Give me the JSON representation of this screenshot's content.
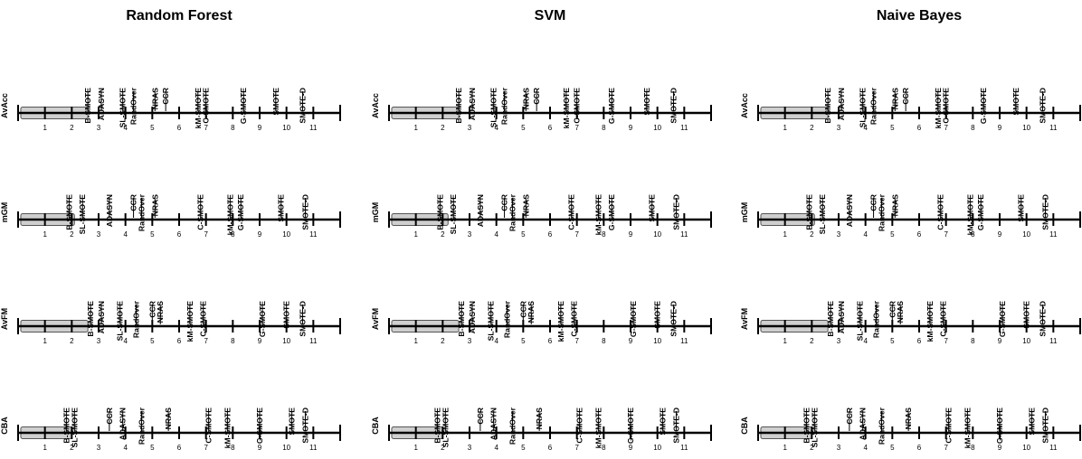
{
  "chart_data": {
    "type": "critical-difference",
    "axis": {
      "min": 0,
      "max": 12,
      "ticks": [
        1,
        2,
        3,
        4,
        5,
        6,
        7,
        8,
        9,
        10,
        11
      ]
    },
    "panels": [
      {
        "title": "Random Forest",
        "rows": [
          {
            "label": "AvAcc",
            "cd": 2.6,
            "methods": [
              {
                "name": "B-SMOTE",
                "rank": 2.6
              },
              {
                "name": "ADASYN",
                "rank": 3.1
              },
              {
                "name": "SL-SMOTE",
                "rank": 3.9
              },
              {
                "name": "RandOver",
                "rank": 4.3
              },
              {
                "name": "NRAS",
                "rank": 5.1
              },
              {
                "name": "CCR",
                "rank": 5.5
              },
              {
                "name": "kM-SMOTE",
                "rank": 6.7
              },
              {
                "name": "C-SMOTE",
                "rank": 7.0
              },
              {
                "name": "G-SMOTE",
                "rank": 8.4
              },
              {
                "name": "SMOTE",
                "rank": 9.6
              },
              {
                "name": "SMOTE-D",
                "rank": 10.6
              }
            ]
          },
          {
            "label": "mGM",
            "cd": 2.1,
            "methods": [
              {
                "name": "B-SMOTE",
                "rank": 1.9
              },
              {
                "name": "SL-SMOTE",
                "rank": 2.4
              },
              {
                "name": "ADASYN",
                "rank": 3.4
              },
              {
                "name": "CCR",
                "rank": 4.3
              },
              {
                "name": "RandOver",
                "rank": 4.6
              },
              {
                "name": "NRAS",
                "rank": 5.1
              },
              {
                "name": "C-SMOTE",
                "rank": 6.8
              },
              {
                "name": "kM-SMOTE",
                "rank": 7.9
              },
              {
                "name": "G-SMOTE",
                "rank": 8.3
              },
              {
                "name": "SMOTE",
                "rank": 9.8
              },
              {
                "name": "SMOTE-D",
                "rank": 10.7
              }
            ]
          },
          {
            "label": "AvFM",
            "cd": 2.6,
            "methods": [
              {
                "name": "B-SMOTE",
                "rank": 2.7
              },
              {
                "name": "ADASYN",
                "rank": 3.1
              },
              {
                "name": "SL-SMOTE",
                "rank": 3.8
              },
              {
                "name": "RandOver",
                "rank": 4.4
              },
              {
                "name": "CCR",
                "rank": 5.0
              },
              {
                "name": "NRAS",
                "rank": 5.3
              },
              {
                "name": "kM-SMOTE",
                "rank": 6.4
              },
              {
                "name": "C-SMOTE",
                "rank": 6.9
              },
              {
                "name": "G-SMOTE",
                "rank": 9.1
              },
              {
                "name": "SMOTE",
                "rank": 10.0
              },
              {
                "name": "SMOTE-D",
                "rank": 10.6
              }
            ]
          },
          {
            "label": "CBA",
            "cd": 2.0,
            "methods": [
              {
                "name": "B-SMOTE",
                "rank": 1.8
              },
              {
                "name": "SL-SMOTE",
                "rank": 2.1
              },
              {
                "name": "CCR",
                "rank": 3.4
              },
              {
                "name": "ADASYN",
                "rank": 3.9
              },
              {
                "name": "RandOver",
                "rank": 4.6
              },
              {
                "name": "NRAS",
                "rank": 5.6
              },
              {
                "name": "C-SMOTE",
                "rank": 7.1
              },
              {
                "name": "kM-SMOTE",
                "rank": 7.8
              },
              {
                "name": "G-SMOTE",
                "rank": 9.0
              },
              {
                "name": "SMOTE",
                "rank": 10.2
              },
              {
                "name": "SMOTE-D",
                "rank": 10.7
              }
            ]
          }
        ]
      },
      {
        "title": "SVM",
        "rows": [
          {
            "label": "AvAcc",
            "cd": 2.6,
            "methods": [
              {
                "name": "B-SMOTE",
                "rank": 2.6
              },
              {
                "name": "ADASYN",
                "rank": 3.1
              },
              {
                "name": "SL-SMOTE",
                "rank": 3.9
              },
              {
                "name": "RandOver",
                "rank": 4.3
              },
              {
                "name": "NRAS",
                "rank": 5.1
              },
              {
                "name": "CCR",
                "rank": 5.5
              },
              {
                "name": "kM-SMOTE",
                "rank": 6.6
              },
              {
                "name": "C-SMOTE",
                "rank": 7.0
              },
              {
                "name": "G-SMOTE",
                "rank": 8.3
              },
              {
                "name": "SMOTE",
                "rank": 9.6
              },
              {
                "name": "SMOTE-D",
                "rank": 10.6
              }
            ]
          },
          {
            "label": "mGM",
            "cd": 2.2,
            "methods": [
              {
                "name": "B-SMOTE",
                "rank": 1.9
              },
              {
                "name": "SL-SMOTE",
                "rank": 2.4
              },
              {
                "name": "ADASYN",
                "rank": 3.4
              },
              {
                "name": "CCR",
                "rank": 4.3
              },
              {
                "name": "RandOver",
                "rank": 4.6
              },
              {
                "name": "NRAS",
                "rank": 5.1
              },
              {
                "name": "C-SMOTE",
                "rank": 6.8
              },
              {
                "name": "kM-SMOTE",
                "rank": 7.8
              },
              {
                "name": "G-SMOTE",
                "rank": 8.3
              },
              {
                "name": "SMOTE",
                "rank": 9.8
              },
              {
                "name": "SMOTE-D",
                "rank": 10.7
              }
            ]
          },
          {
            "label": "AvFM",
            "cd": 2.6,
            "methods": [
              {
                "name": "B-SMOTE",
                "rank": 2.7
              },
              {
                "name": "ADASYN",
                "rank": 3.1
              },
              {
                "name": "SL-SMOTE",
                "rank": 3.8
              },
              {
                "name": "RandOver",
                "rank": 4.4
              },
              {
                "name": "CCR",
                "rank": 5.0
              },
              {
                "name": "NRAS",
                "rank": 5.3
              },
              {
                "name": "kM-SMOTE",
                "rank": 6.4
              },
              {
                "name": "C-SMOTE",
                "rank": 6.9
              },
              {
                "name": "G-SMOTE",
                "rank": 9.1
              },
              {
                "name": "SMOTE",
                "rank": 10.0
              },
              {
                "name": "SMOTE-D",
                "rank": 10.6
              }
            ]
          },
          {
            "label": "CBA",
            "cd": 2.0,
            "methods": [
              {
                "name": "B-SMOTE",
                "rank": 1.8
              },
              {
                "name": "SL-SMOTE",
                "rank": 2.1
              },
              {
                "name": "CCR",
                "rank": 3.4
              },
              {
                "name": "ADASYN",
                "rank": 3.9
              },
              {
                "name": "RandOver",
                "rank": 4.6
              },
              {
                "name": "NRAS",
                "rank": 5.6
              },
              {
                "name": "C-SMOTE",
                "rank": 7.1
              },
              {
                "name": "kM-SMOTE",
                "rank": 7.8
              },
              {
                "name": "G-SMOTE",
                "rank": 9.0
              },
              {
                "name": "SMOTE",
                "rank": 10.2
              },
              {
                "name": "SMOTE-D",
                "rank": 10.7
              }
            ]
          }
        ]
      },
      {
        "title": "Naive Bayes",
        "rows": [
          {
            "label": "AvAcc",
            "cd": 2.6,
            "methods": [
              {
                "name": "B-SMOTE",
                "rank": 2.6
              },
              {
                "name": "ADASYN",
                "rank": 3.1
              },
              {
                "name": "SL-SMOTE",
                "rank": 3.9
              },
              {
                "name": "RandOver",
                "rank": 4.3
              },
              {
                "name": "NRAS",
                "rank": 5.1
              },
              {
                "name": "CCR",
                "rank": 5.5
              },
              {
                "name": "kM-SMOTE",
                "rank": 6.7
              },
              {
                "name": "C-SMOTE",
                "rank": 7.0
              },
              {
                "name": "G-SMOTE",
                "rank": 8.4
              },
              {
                "name": "SMOTE",
                "rank": 9.6
              },
              {
                "name": "SMOTE-D",
                "rank": 10.6
              }
            ]
          },
          {
            "label": "mGM",
            "cd": 2.1,
            "methods": [
              {
                "name": "B-SMOTE",
                "rank": 1.9
              },
              {
                "name": "SL-SMOTE",
                "rank": 2.4
              },
              {
                "name": "ADASYN",
                "rank": 3.4
              },
              {
                "name": "CCR",
                "rank": 4.3
              },
              {
                "name": "RandOver",
                "rank": 4.6
              },
              {
                "name": "NRAS",
                "rank": 5.1
              },
              {
                "name": "C-SMOTE",
                "rank": 6.8
              },
              {
                "name": "kM-SMOTE",
                "rank": 7.9
              },
              {
                "name": "G-SMOTE",
                "rank": 8.3
              },
              {
                "name": "SMOTE",
                "rank": 9.8
              },
              {
                "name": "SMOTE-D",
                "rank": 10.7
              }
            ]
          },
          {
            "label": "AvFM",
            "cd": 2.6,
            "methods": [
              {
                "name": "B-SMOTE",
                "rank": 2.7
              },
              {
                "name": "ADASYN",
                "rank": 3.1
              },
              {
                "name": "SL-SMOTE",
                "rank": 3.8
              },
              {
                "name": "RandOver",
                "rank": 4.4
              },
              {
                "name": "CCR",
                "rank": 5.0
              },
              {
                "name": "NRAS",
                "rank": 5.3
              },
              {
                "name": "kM-SMOTE",
                "rank": 6.4
              },
              {
                "name": "C-SMOTE",
                "rank": 6.9
              },
              {
                "name": "G-SMOTE",
                "rank": 9.1
              },
              {
                "name": "SMOTE",
                "rank": 10.0
              },
              {
                "name": "SMOTE-D",
                "rank": 10.6
              }
            ]
          },
          {
            "label": "CBA",
            "cd": 2.0,
            "methods": [
              {
                "name": "B-SMOTE",
                "rank": 1.8
              },
              {
                "name": "SL-SMOTE",
                "rank": 2.1
              },
              {
                "name": "CCR",
                "rank": 3.4
              },
              {
                "name": "ADASYN",
                "rank": 3.9
              },
              {
                "name": "RandOver",
                "rank": 4.6
              },
              {
                "name": "NRAS",
                "rank": 5.6
              },
              {
                "name": "C-SMOTE",
                "rank": 7.1
              },
              {
                "name": "kM-SMOTE",
                "rank": 7.8
              },
              {
                "name": "G-SMOTE",
                "rank": 9.0
              },
              {
                "name": "SMOTE",
                "rank": 10.2
              },
              {
                "name": "SMOTE-D",
                "rank": 10.7
              }
            ]
          }
        ]
      }
    ],
    "colors": {
      "cd_bar_fill": "#cfcfcf",
      "cd_bar_stroke": "#555555",
      "line": "#000000"
    }
  }
}
